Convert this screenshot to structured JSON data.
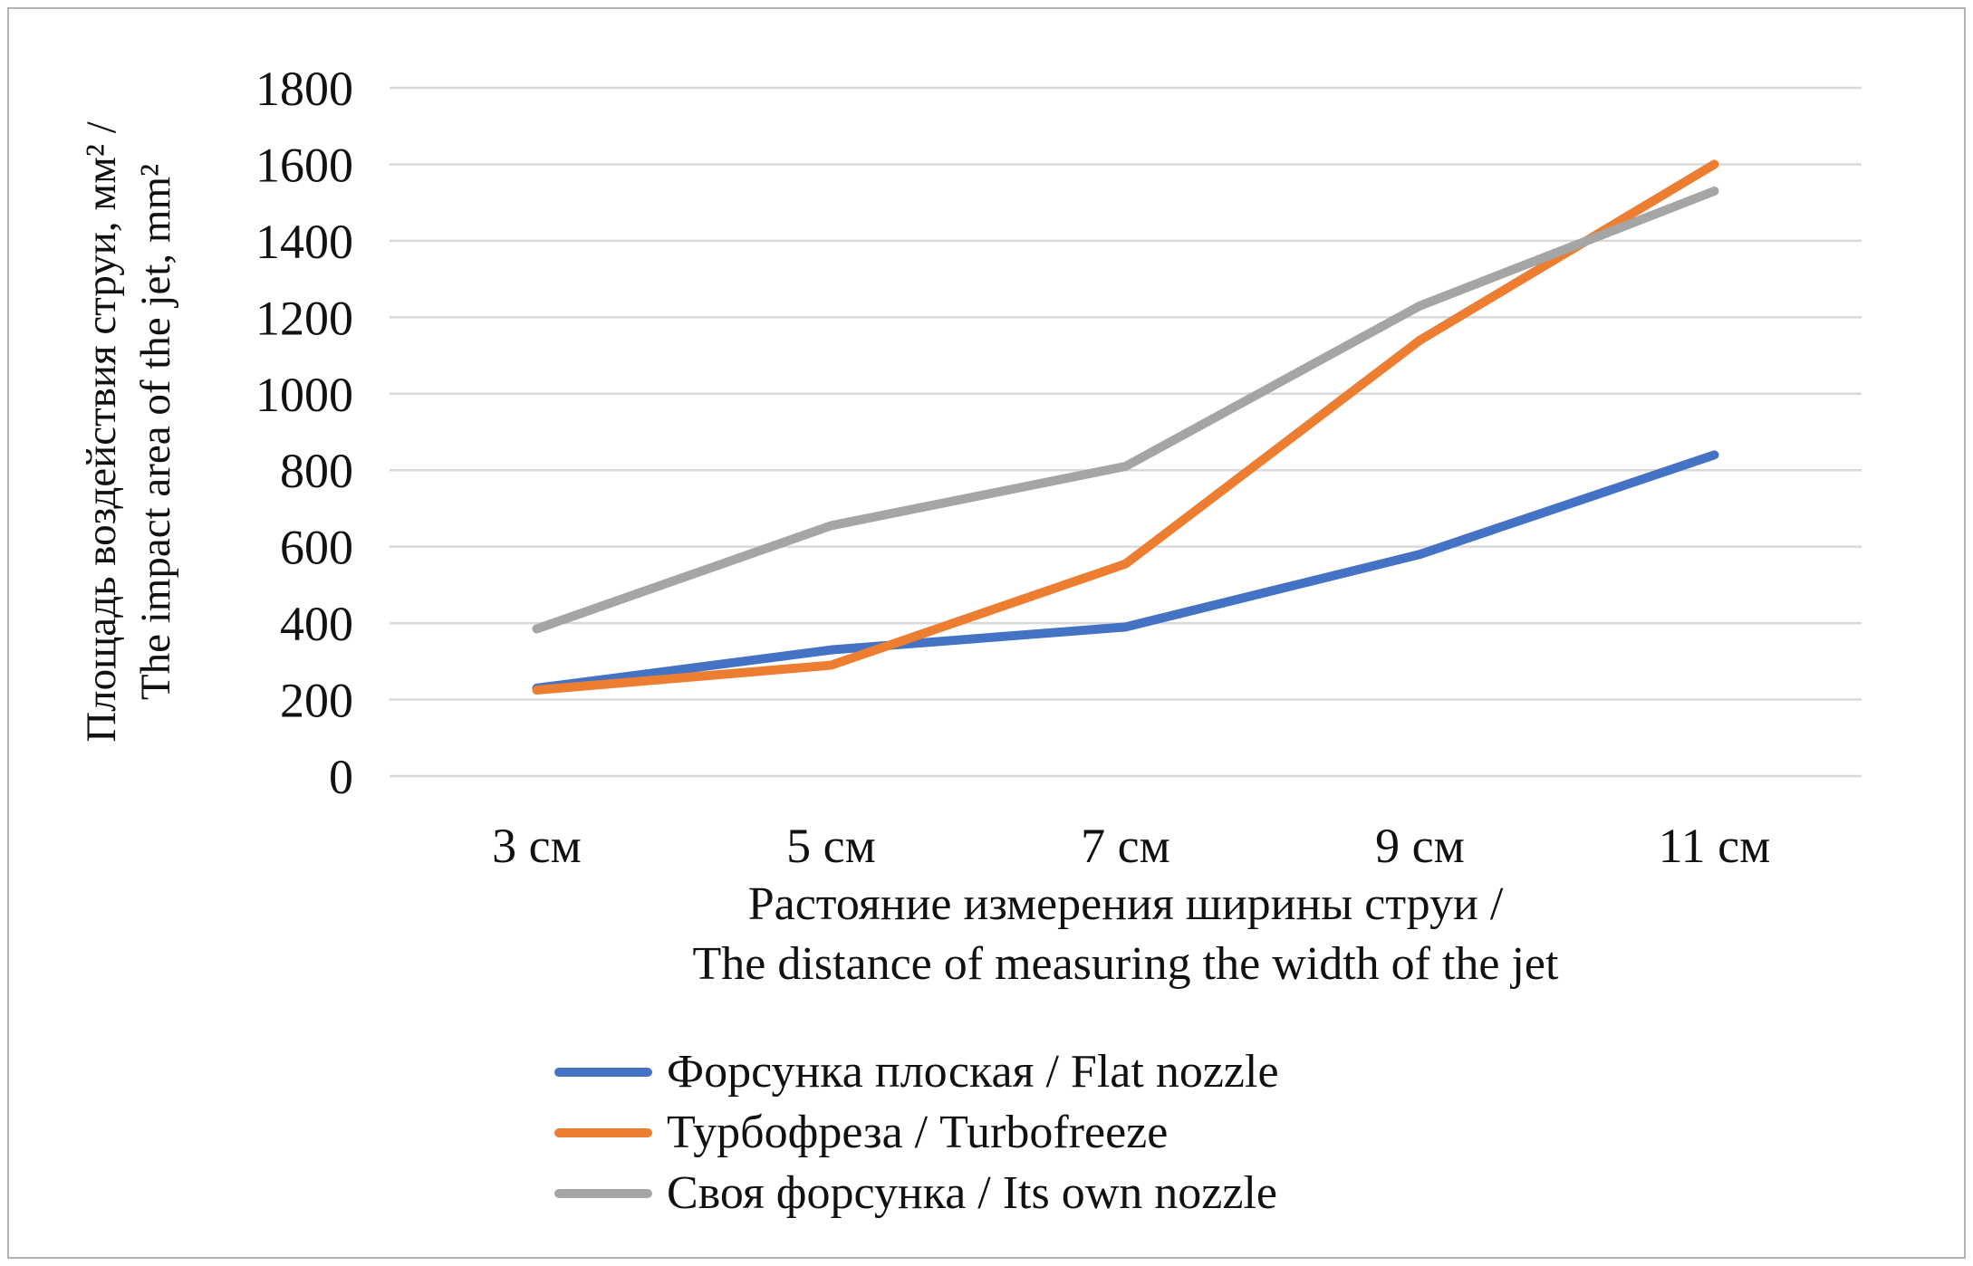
{
  "chart_data": {
    "type": "line",
    "categories": [
      "3 см",
      "5 см",
      "7 см",
      "9 см",
      "11 см"
    ],
    "series": [
      {
        "name": "Форсунка плоская / Flat nozzle",
        "color": "#4472C4",
        "values": [
          230,
          330,
          390,
          580,
          840
        ]
      },
      {
        "name": "Турбофреза / Turbofreeze",
        "color": "#ED7D31",
        "values": [
          225,
          290,
          555,
          1140,
          1600
        ]
      },
      {
        "name": "Своя форсунка / Its own nozzle",
        "color": "#A5A5A5",
        "values": [
          385,
          655,
          810,
          1230,
          1530
        ]
      }
    ],
    "ylabel_line1": "Площадь воздействия  струи, мм² /",
    "ylabel_line2": "The impact area of the jet, mm²",
    "xlabel_line1": "Растояние измерения ширины струи /",
    "xlabel_line2": "The distance of measuring the width of the jet",
    "ylim": [
      0,
      1800
    ],
    "yticks": [
      0,
      200,
      400,
      600,
      800,
      1000,
      1200,
      1400,
      1600,
      1800
    ],
    "grid": "horizontal",
    "gridline_color": "#d9d9d9",
    "legend_position": "bottom"
  }
}
